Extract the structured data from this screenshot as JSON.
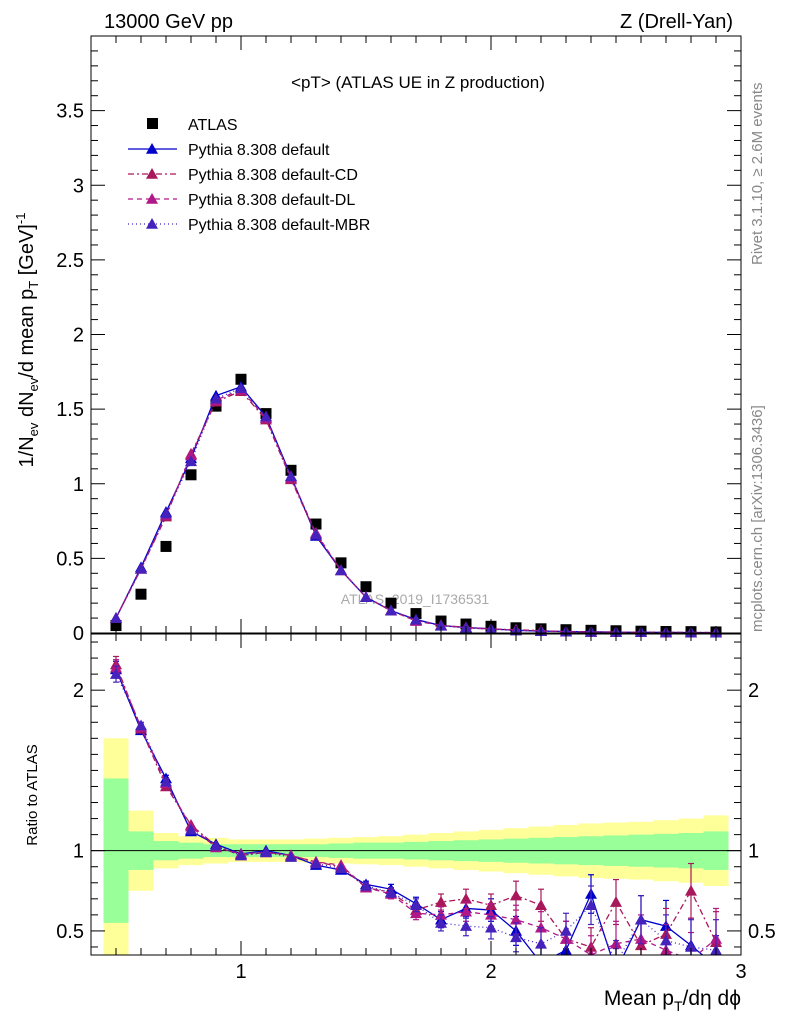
{
  "header": {
    "left": "13000 GeV pp",
    "right": "Z (Drell-Yan)"
  },
  "side_text": {
    "rivet": "Rivet 3.1.10, ≥ 2.6M events",
    "mcplots": "mcplots.cern.ch [arXiv:1306.3436]"
  },
  "chart_data": [
    {
      "type": "scatter",
      "title": "<pT> (ATLAS UE in Z production)",
      "ylabel": "1/N_ev dN_ev/d mean p_T [GeV]^-1",
      "xlabel": "",
      "xlim": [
        0.4,
        3.0
      ],
      "ylim": [
        0,
        4.0
      ],
      "yticks": [
        "0",
        "0.5",
        "1",
        "1.5",
        "2",
        "2.5",
        "3",
        "3.5"
      ],
      "watermark": "ATLAS_2019_I1736531",
      "legend_position": "top-left",
      "x": [
        0.5,
        0.6,
        0.7,
        0.8,
        0.9,
        1.0,
        1.1,
        1.2,
        1.3,
        1.4,
        1.5,
        1.6,
        1.7,
        1.8,
        1.9,
        2.0,
        2.1,
        2.2,
        2.3,
        2.4,
        2.5,
        2.6,
        2.7,
        2.8,
        2.9
      ],
      "series": [
        {
          "name": "ATLAS",
          "color": "#000000",
          "marker": "square",
          "values": [
            0.05,
            0.26,
            0.58,
            1.06,
            1.52,
            1.7,
            1.47,
            1.09,
            0.73,
            0.47,
            0.31,
            0.2,
            0.13,
            0.08,
            0.06,
            0.045,
            0.035,
            0.028,
            0.022,
            0.018,
            0.015,
            0.012,
            0.01,
            0.009,
            0.007
          ]
        },
        {
          "name": "Pythia 8.308 default",
          "color": "#0000cc",
          "marker": "triangle",
          "dash": "",
          "values": [
            0.1,
            0.44,
            0.81,
            1.17,
            1.59,
            1.65,
            1.45,
            1.05,
            0.65,
            0.42,
            0.24,
            0.15,
            0.09,
            0.05,
            0.037,
            0.028,
            0.018,
            0.013,
            0.01,
            0.008,
            0.006,
            0.005,
            0.004,
            0.003,
            0.002
          ]
        },
        {
          "name": "Pythia 8.308 default-CD",
          "color": "#a8185a",
          "marker": "triangle",
          "dash": "6,3,2,3",
          "values": [
            0.1,
            0.43,
            0.78,
            1.2,
            1.55,
            1.62,
            1.43,
            1.03,
            0.66,
            0.42,
            0.24,
            0.15,
            0.085,
            0.052,
            0.038,
            0.027,
            0.022,
            0.016,
            0.009,
            0.007,
            0.006,
            0.005,
            0.004,
            0.004,
            0.003
          ]
        },
        {
          "name": "Pythia 8.308 default-DL",
          "color": "#b01888",
          "marker": "triangle",
          "dash": "5,4",
          "values": [
            0.1,
            0.43,
            0.79,
            1.19,
            1.56,
            1.63,
            1.44,
            1.04,
            0.67,
            0.42,
            0.24,
            0.15,
            0.08,
            0.05,
            0.035,
            0.026,
            0.02,
            0.015,
            0.009,
            0.007,
            0.006,
            0.005,
            0.004,
            0.003,
            0.003
          ]
        },
        {
          "name": "Pythia 8.308 default-MBR",
          "color": "#4422bb",
          "marker": "triangle",
          "dash": "1,3",
          "values": [
            0.1,
            0.43,
            0.8,
            1.15,
            1.57,
            1.64,
            1.45,
            1.05,
            0.66,
            0.42,
            0.24,
            0.15,
            0.088,
            0.048,
            0.034,
            0.026,
            0.016,
            0.012,
            0.009,
            0.007,
            0.006,
            0.005,
            0.004,
            0.003,
            0.002
          ]
        }
      ]
    },
    {
      "type": "scatter",
      "xlabel": "Mean p_T/dη dφ",
      "ylabel": "Ratio to ATLAS",
      "xlim": [
        0.4,
        3.0
      ],
      "ylim": [
        0.35,
        2.35
      ],
      "xticks": [
        "1",
        "2",
        "3"
      ],
      "yticks": [
        "0.5",
        "1",
        "2"
      ],
      "x": [
        0.5,
        0.6,
        0.7,
        0.8,
        0.9,
        1.0,
        1.1,
        1.2,
        1.3,
        1.4,
        1.5,
        1.6,
        1.7,
        1.8,
        1.9,
        2.0,
        2.1,
        2.2,
        2.3,
        2.4,
        2.5,
        2.6,
        2.7,
        2.8,
        2.9
      ],
      "band_x": [
        0.45,
        0.55,
        0.65,
        0.75,
        0.85,
        0.95,
        1.05,
        1.15,
        1.25,
        1.35,
        1.45,
        1.55,
        1.65,
        1.75,
        1.85,
        1.95,
        2.05,
        2.15,
        2.25,
        2.35,
        2.45,
        2.55,
        2.65,
        2.75,
        2.85,
        2.95
      ],
      "band_green_halfwidth": [
        0.45,
        0.12,
        0.06,
        0.05,
        0.04,
        0.04,
        0.04,
        0.04,
        0.04,
        0.045,
        0.05,
        0.05,
        0.055,
        0.06,
        0.065,
        0.07,
        0.075,
        0.08,
        0.085,
        0.09,
        0.095,
        0.1,
        0.105,
        0.11,
        0.12
      ],
      "band_yellow_halfwidth": [
        0.7,
        0.25,
        0.11,
        0.09,
        0.08,
        0.07,
        0.07,
        0.07,
        0.075,
        0.08,
        0.085,
        0.09,
        0.1,
        0.11,
        0.12,
        0.13,
        0.14,
        0.15,
        0.16,
        0.17,
        0.175,
        0.18,
        0.19,
        0.2,
        0.22
      ],
      "series": [
        {
          "name": "Pythia 8.308 default",
          "color": "#0000cc",
          "dash": "",
          "values": [
            2.13,
            1.75,
            1.45,
            1.12,
            1.04,
            0.98,
            1.0,
            0.97,
            0.91,
            0.88,
            0.79,
            0.76,
            0.67,
            0.57,
            0.64,
            0.63,
            0.5,
            0.3,
            0.38,
            0.73,
            0.25,
            0.57,
            0.53,
            0.41,
            0.28
          ],
          "err": [
            0.05,
            0.02,
            0.02,
            0.01,
            0.01,
            0.01,
            0.01,
            0.01,
            0.01,
            0.01,
            0.02,
            0.03,
            0.04,
            0.05,
            0.06,
            0.07,
            0.09,
            0.1,
            0.11,
            0.12,
            0.14,
            0.15,
            0.16,
            0.17,
            0.19
          ]
        },
        {
          "name": "Pythia 8.308 default-CD",
          "color": "#a8185a",
          "dash": "6,3,2,3",
          "values": [
            2.16,
            1.76,
            1.4,
            1.16,
            1.03,
            0.97,
            0.99,
            0.97,
            0.93,
            0.9,
            0.77,
            0.74,
            0.63,
            0.68,
            0.7,
            0.66,
            0.72,
            0.66,
            0.45,
            0.4,
            0.68,
            0.41,
            0.48,
            0.75,
            0.43
          ],
          "err": [
            0.05,
            0.02,
            0.02,
            0.01,
            0.01,
            0.01,
            0.01,
            0.01,
            0.01,
            0.01,
            0.02,
            0.03,
            0.04,
            0.05,
            0.06,
            0.07,
            0.09,
            0.1,
            0.11,
            0.12,
            0.14,
            0.15,
            0.16,
            0.17,
            0.19
          ]
        },
        {
          "name": "Pythia 8.308 default-DL",
          "color": "#b01888",
          "dash": "5,4",
          "values": [
            2.14,
            1.77,
            1.42,
            1.15,
            1.02,
            0.98,
            0.99,
            0.97,
            0.93,
            0.91,
            0.77,
            0.73,
            0.61,
            0.6,
            0.62,
            0.6,
            0.57,
            0.52,
            0.45,
            0.35,
            0.42,
            0.45,
            0.38,
            0.32,
            0.45
          ],
          "err": [
            0.05,
            0.02,
            0.02,
            0.01,
            0.01,
            0.01,
            0.01,
            0.01,
            0.01,
            0.01,
            0.02,
            0.03,
            0.04,
            0.05,
            0.06,
            0.07,
            0.09,
            0.1,
            0.11,
            0.12,
            0.14,
            0.15,
            0.16,
            0.17,
            0.19
          ]
        },
        {
          "name": "Pythia 8.308 default-MBR",
          "color": "#4422bb",
          "dash": "1,3",
          "values": [
            2.1,
            1.78,
            1.43,
            1.13,
            1.03,
            0.97,
            0.99,
            0.96,
            0.92,
            0.89,
            0.78,
            0.74,
            0.66,
            0.55,
            0.53,
            0.52,
            0.46,
            0.42,
            0.5,
            0.66,
            0.3,
            0.57,
            0.44,
            0.4,
            0.38
          ],
          "err": [
            0.05,
            0.02,
            0.02,
            0.01,
            0.01,
            0.01,
            0.01,
            0.01,
            0.01,
            0.01,
            0.02,
            0.03,
            0.04,
            0.05,
            0.06,
            0.07,
            0.09,
            0.1,
            0.11,
            0.12,
            0.14,
            0.15,
            0.16,
            0.17,
            0.19
          ]
        }
      ]
    }
  ]
}
